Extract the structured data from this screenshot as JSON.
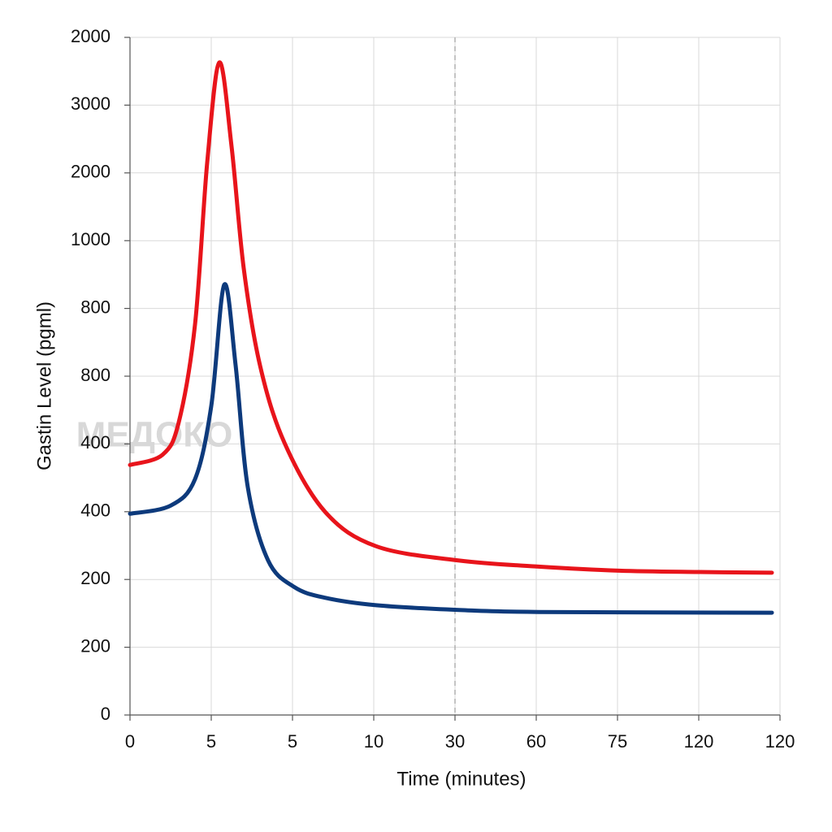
{
  "chart_data": {
    "type": "line",
    "ylabel": "Gastin Level (pgml)",
    "xlabel": "Time (minutes)",
    "watermark": "МЕДОКО",
    "xlim": [
      0,
      8
    ],
    "xticks": [
      0,
      {
        "value": 1,
        "label": "5"
      },
      {
        "value": 2,
        "label": "5"
      },
      {
        "value": 3,
        "label": "10"
      },
      {
        "value": 4,
        "label": "30"
      },
      {
        "value": 5,
        "label": "60"
      },
      {
        "value": 6,
        "label": "75"
      },
      {
        "value": 7,
        "label": "120"
      },
      {
        "value": 8,
        "label": "120"
      }
    ],
    "ylim": [
      0,
      10
    ],
    "yticks": [
      0,
      {
        "value": 1,
        "label": "200"
      },
      {
        "value": 2,
        "label": "200"
      },
      {
        "value": 3,
        "label": "400"
      },
      {
        "value": 4,
        "label": "400"
      },
      {
        "value": 5,
        "label": "800"
      },
      {
        "value": 6,
        "label": "800"
      },
      {
        "value": 7,
        "label": "1000"
      },
      {
        "value": 8,
        "label": "2000"
      },
      {
        "value": 9,
        "label": "3000"
      },
      {
        "value": 10,
        "label": "2000"
      }
    ],
    "grid": true,
    "reference_line_x": 4,
    "series": [
      {
        "color": "#e8141b",
        "x": [
          0,
          0.4,
          0.6,
          0.8,
          0.95,
          1.1,
          1.25,
          1.4,
          1.6,
          1.9,
          2.4,
          3.03,
          4.05,
          5.03,
          6.02,
          7.02,
          7.9
        ],
        "values": [
          3.69,
          3.84,
          4.32,
          5.76,
          8.15,
          9.63,
          8.39,
          6.59,
          5.16,
          4.02,
          3.0,
          2.49,
          2.28,
          2.19,
          2.13,
          2.11,
          2.1
        ]
      },
      {
        "color": "#0d3a7c",
        "x": [
          0,
          0.5,
          0.8,
          1.0,
          1.16,
          1.3,
          1.45,
          1.7,
          2.02,
          2.4,
          3.03,
          4.05,
          5.03,
          7.9
        ],
        "values": [
          2.97,
          3.09,
          3.48,
          4.56,
          6.35,
          5.16,
          3.36,
          2.28,
          1.89,
          1.73,
          1.62,
          1.55,
          1.52,
          1.51
        ]
      }
    ]
  }
}
